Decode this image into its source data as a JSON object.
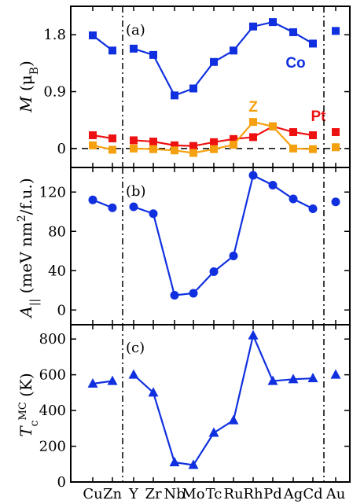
{
  "chart_data": {
    "type": "line",
    "categories": [
      "Cu",
      "Zn",
      "Y",
      "Zr",
      "Nb",
      "Mo",
      "Tc",
      "Ru",
      "Rh",
      "Pd",
      "Ag",
      "Cd",
      "Au"
    ],
    "category_colors": [
      "#228b22",
      "#228b22",
      "#000000",
      "#000000",
      "#000000",
      "#000000",
      "#000000",
      "#000000",
      "#000000",
      "#000000",
      "#000000",
      "#000000",
      "#8a2be2"
    ],
    "category_label_texts": [
      "Cu",
      "Zn",
      "Y",
      "Zr",
      "Nb",
      "Mo",
      "Tc",
      "Ru",
      "Rh",
      "Pd",
      "Ag",
      "Cd",
      "Au"
    ],
    "groups": [
      [
        0,
        1
      ],
      [
        2,
        3,
        4,
        5,
        6,
        7,
        8,
        9,
        10,
        11
      ],
      [
        12
      ]
    ],
    "panels": [
      {
        "label": "(a)",
        "ylabel": "M (μB)",
        "ylim": [
          -0.3,
          2.25
        ],
        "yticks": [
          0,
          0.9,
          1.8
        ],
        "ytick_labels": [
          "0",
          "0.9",
          "1.8"
        ],
        "zero_line": true,
        "marker": "square",
        "series": [
          {
            "name": "Co",
            "color": "#1030e0",
            "values": [
              1.79,
              1.55,
              1.58,
              1.48,
              0.84,
              0.95,
              1.37,
              1.55,
              1.93,
              2.0,
              1.84,
              1.66,
              1.86
            ]
          },
          {
            "name": "Pt",
            "color": "#ee1111",
            "values": [
              0.21,
              0.16,
              0.13,
              0.11,
              0.05,
              0.04,
              0.1,
              0.15,
              0.18,
              0.35,
              0.26,
              0.21,
              0.26
            ]
          },
          {
            "name": "Z",
            "color": "#f5a10f",
            "values": [
              0.05,
              -0.02,
              0.0,
              -0.01,
              -0.03,
              -0.07,
              -0.01,
              0.06,
              0.42,
              0.35,
              0.0,
              -0.01,
              0.02
            ]
          }
        ]
      },
      {
        "label": "(b)",
        "ylabel": "A|| (meV nm²/f.u.)",
        "ylim": [
          -15,
          145
        ],
        "yticks": [
          0,
          40,
          80,
          120
        ],
        "ytick_labels": [
          "0",
          "40",
          "80",
          "120"
        ],
        "zero_line": false,
        "marker": "circle",
        "series": [
          {
            "name": "",
            "color": "#1030e0",
            "values": [
              112,
              104,
              105,
              98,
              15,
              17,
              39,
              55,
              137,
              127,
              113,
              103,
              110
            ]
          }
        ]
      },
      {
        "label": "(c)",
        "ylabel": "Tc MC (K)",
        "ylim": [
          0,
          880
        ],
        "yticks": [
          0,
          200,
          400,
          600,
          800
        ],
        "ytick_labels": [
          "0",
          "200",
          "400",
          "600",
          "800"
        ],
        "zero_line": false,
        "marker": "triangle",
        "series": [
          {
            "name": "",
            "color": "#1030e0",
            "values": [
              550,
              565,
              600,
              500,
              110,
              95,
              275,
              345,
              820,
              565,
              575,
              580,
              600
            ]
          }
        ]
      }
    ],
    "legend_texts": {
      "Co": "Co",
      "Pt": "Pt",
      "Z": "Z"
    },
    "grid": false
  }
}
